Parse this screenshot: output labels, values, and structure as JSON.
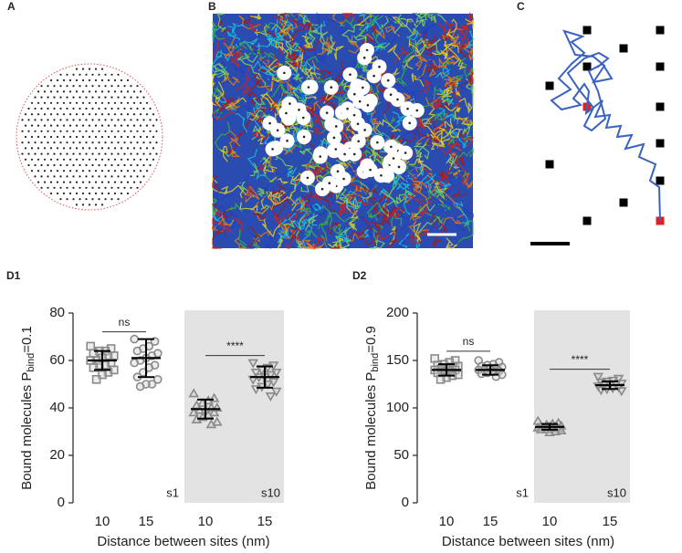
{
  "panels": [
    "A",
    "B",
    "C"
  ],
  "chart_data": [
    {
      "type": "scatter",
      "title": "D1",
      "ylabel": [
        "Bound molecules P",
        "bind",
        "=0.1"
      ],
      "xlabel": "Distance between sites (nm)",
      "categories": [
        "10",
        "15",
        "10",
        "15"
      ],
      "ylim": [
        0,
        80
      ],
      "yticks": [
        0,
        20,
        40,
        60,
        80
      ],
      "groups": [
        {
          "marker": "square",
          "values": [
            66,
            65,
            64,
            64,
            63,
            62,
            62,
            61,
            60,
            60,
            59,
            58,
            58,
            57,
            56,
            55,
            54,
            52
          ],
          "mean": 60,
          "sd": 4
        },
        {
          "marker": "circle",
          "values": [
            69,
            68,
            66,
            65,
            64,
            63,
            62,
            61,
            60,
            59,
            58,
            57,
            55,
            53,
            52,
            50,
            50,
            49
          ],
          "mean": 61,
          "sd": 8
        },
        {
          "marker": "triangle-up",
          "values": [
            46,
            44,
            43,
            42,
            41,
            40,
            40,
            39,
            39,
            38,
            38,
            37,
            36,
            35,
            34,
            33
          ],
          "mean": 39.5,
          "sd": 4
        },
        {
          "marker": "triangle-down",
          "values": [
            59,
            58,
            57,
            56,
            55,
            55,
            54,
            53,
            53,
            52,
            51,
            50,
            49,
            48,
            47,
            45
          ],
          "mean": 53,
          "sd": 4.5
        }
      ],
      "comparisons": [
        {
          "groups": [
            0,
            1
          ],
          "text": "ns"
        },
        {
          "groups": [
            2,
            3
          ],
          "text": "****"
        }
      ],
      "region_labels": [
        "s1",
        "s10"
      ],
      "shade_color": "#e3e3e3",
      "marker_color": "#8a8a8a"
    },
    {
      "type": "scatter",
      "title": "D2",
      "ylabel": [
        "Bound molecules P",
        "bind",
        "=0.9"
      ],
      "xlabel": "Distance between sites (nm)",
      "categories": [
        "10",
        "15",
        "10",
        "15"
      ],
      "ylim": [
        0,
        200
      ],
      "yticks": [
        0,
        50,
        100,
        150,
        200
      ],
      "groups": [
        {
          "marker": "square",
          "values": [
            152,
            150,
            148,
            146,
            145,
            144,
            143,
            142,
            141,
            140,
            140,
            139,
            138,
            137,
            135,
            134,
            132,
            130
          ],
          "mean": 140,
          "sd": 6
        },
        {
          "marker": "circle",
          "values": [
            150,
            148,
            146,
            145,
            144,
            143,
            142,
            141,
            140,
            140,
            139,
            138,
            137,
            136,
            135,
            133
          ],
          "mean": 140,
          "sd": 5
        },
        {
          "marker": "triangle-up",
          "values": [
            86,
            84,
            83,
            82,
            81,
            81,
            80,
            80,
            79,
            79,
            78,
            78,
            77,
            77,
            76,
            75,
            74
          ],
          "mean": 80,
          "sd": 3
        },
        {
          "marker": "triangle-down",
          "values": [
            133,
            131,
            129,
            128,
            127,
            126,
            125,
            124,
            124,
            123,
            122,
            121,
            120,
            119,
            118
          ],
          "mean": 124,
          "sd": 4
        }
      ],
      "comparisons": [
        {
          "groups": [
            0,
            1
          ],
          "text": "ns"
        },
        {
          "groups": [
            2,
            3
          ],
          "text": "****"
        }
      ],
      "region_labels": [
        "s1",
        "s10"
      ],
      "shade_color": "#e3e3e3",
      "marker_color": "#8a8a8a"
    }
  ]
}
